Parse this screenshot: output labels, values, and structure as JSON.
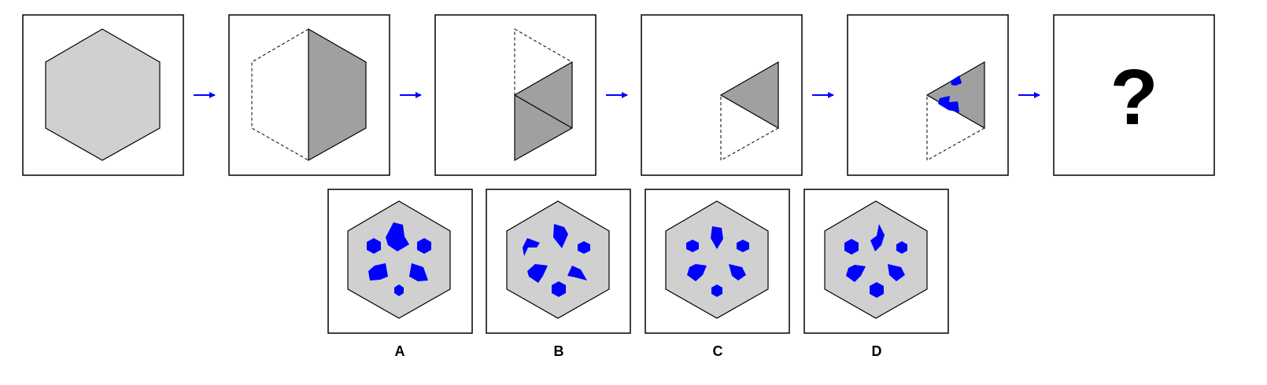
{
  "question_mark": "?",
  "options": [
    {
      "label": "A"
    },
    {
      "label": "B"
    },
    {
      "label": "C"
    },
    {
      "label": "D"
    }
  ],
  "colors": {
    "hexagon_fill": "#d0d0d0",
    "folded_fill": "#a0a0a0",
    "hole_fill": "#0000ff",
    "arrow": "#0000ff",
    "line": "#000000"
  }
}
